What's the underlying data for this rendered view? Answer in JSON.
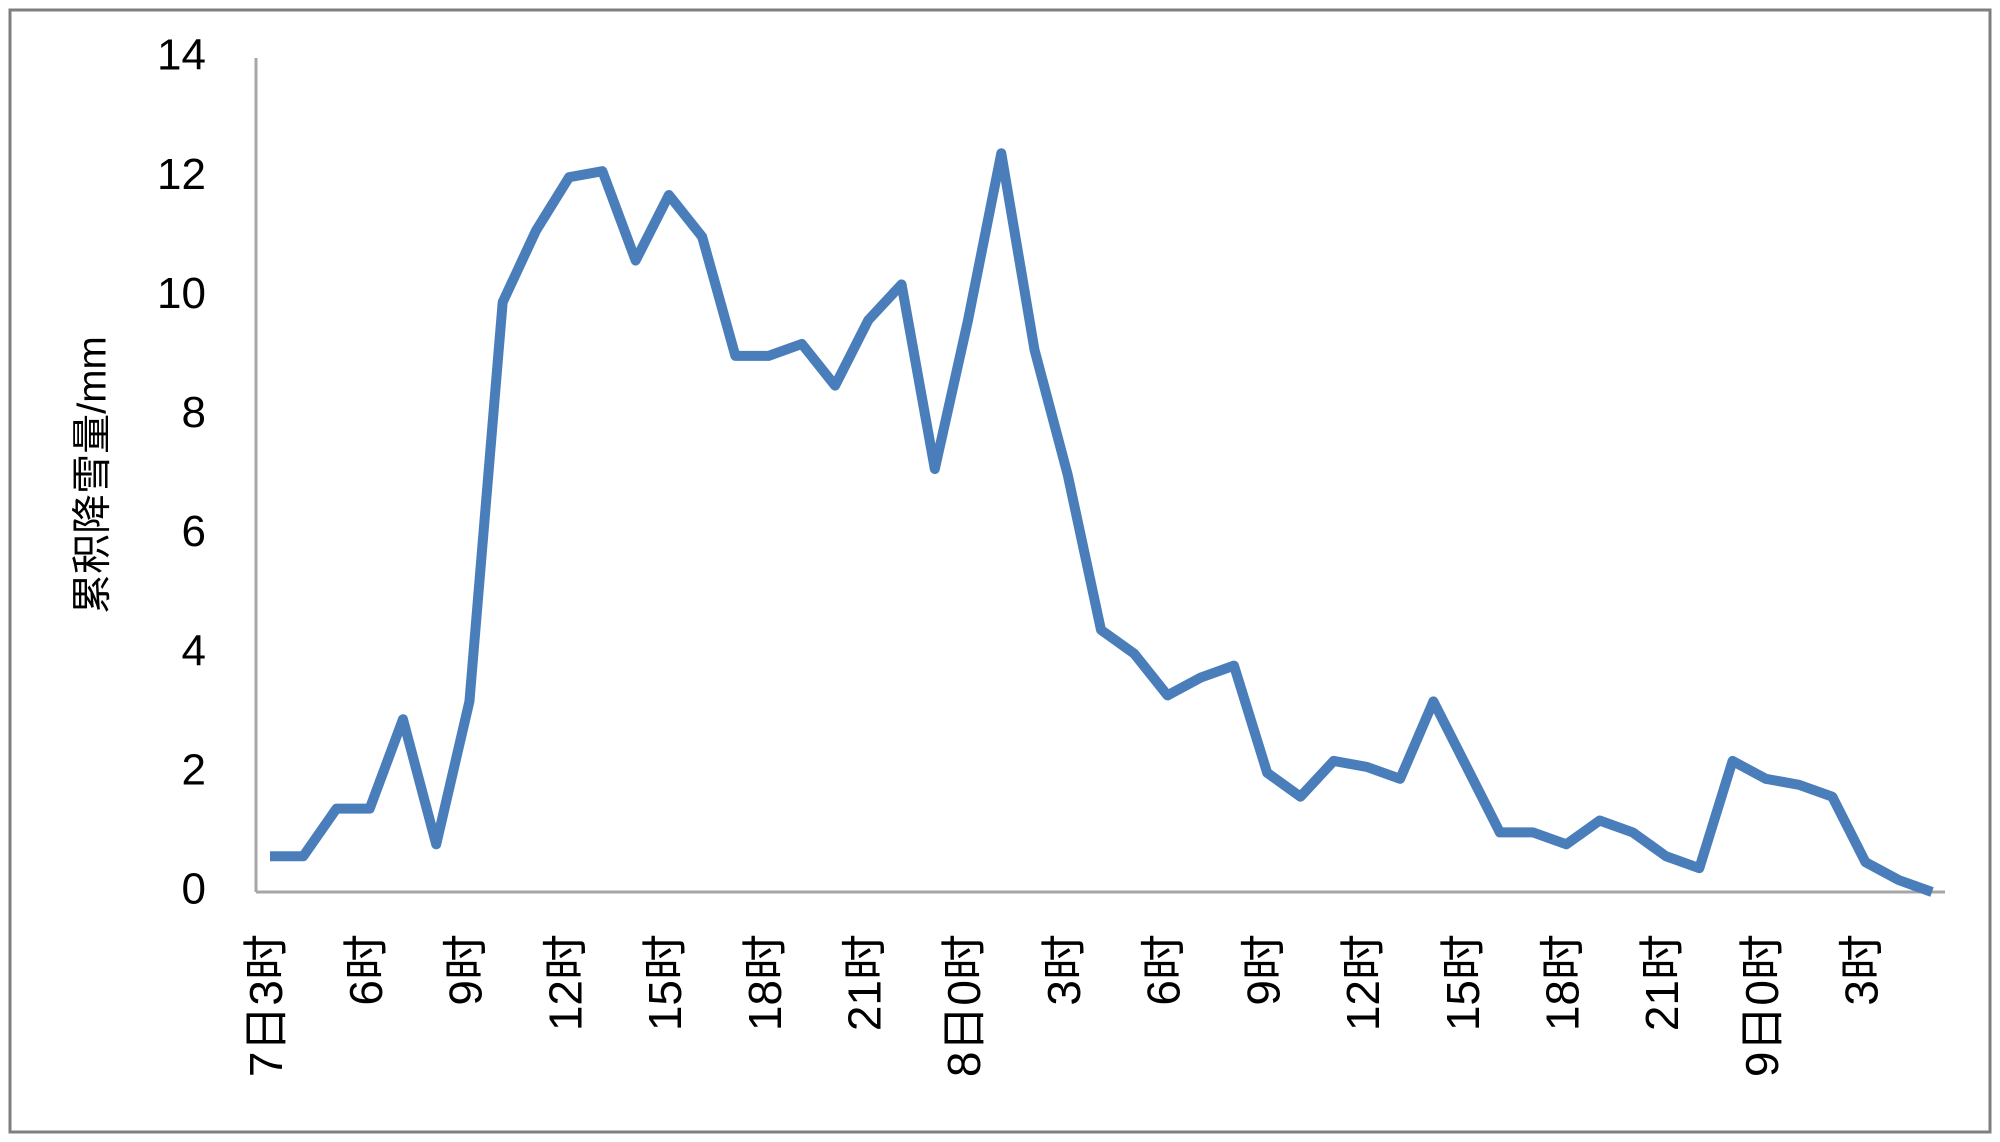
{
  "chart_data": {
    "type": "line",
    "y_label": "累积降雪量/mm",
    "categories": [
      "7日3时",
      null,
      null,
      "6时",
      null,
      null,
      "9时",
      null,
      null,
      "12时",
      null,
      null,
      "15时",
      null,
      null,
      "18时",
      null,
      null,
      "21时",
      null,
      null,
      "8日0时",
      null,
      null,
      "3时",
      null,
      null,
      "6时",
      null,
      null,
      "9时",
      null,
      null,
      "12时",
      null,
      null,
      "15时",
      null,
      null,
      "18时",
      null,
      null,
      "21时",
      null,
      null,
      "9日0时",
      null,
      null,
      "3时",
      null,
      null
    ],
    "series": [
      {
        "color": "#4a7ebb",
        "values": [
          0.6,
          0.6,
          1.4,
          1.4,
          2.9,
          0.8,
          3.2,
          9.9,
          11.1,
          12.0,
          12.1,
          10.6,
          11.7,
          11.0,
          9.0,
          9.0,
          9.2,
          8.5,
          9.6,
          10.2,
          7.1,
          9.6,
          12.4,
          9.1,
          7.0,
          4.4,
          4.0,
          3.3,
          3.6,
          3.8,
          2.0,
          1.6,
          2.2,
          2.1,
          1.9,
          3.2,
          2.1,
          1.0,
          1.0,
          0.8,
          1.2,
          1.0,
          0.6,
          0.4,
          2.2,
          1.9,
          1.8,
          1.6,
          0.5,
          0.2,
          0.0
        ]
      }
    ],
    "ylim": [
      0,
      14
    ],
    "yticks": [
      0,
      2,
      4,
      6,
      8,
      10,
      12,
      14
    ],
    "grid": false
  }
}
